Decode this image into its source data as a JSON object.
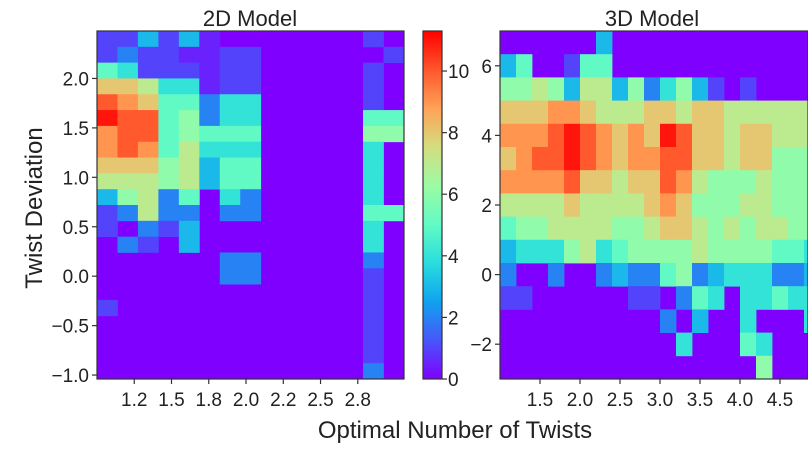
{
  "colors": {
    "colormap": "rainbow",
    "cmap_stops": [
      "#8000ff",
      "#4856fa",
      "#10a2f0",
      "#2adddd",
      "#62fbc4",
      "#9cfba4",
      "#d4dd80",
      "#ffa256",
      "#ff562c",
      "#ff0000"
    ]
  },
  "xlabel": "Optimal Number of Twists",
  "ylabel": "Twist Deviation",
  "chart_data": [
    {
      "type": "heatmap",
      "title": "2D Model",
      "xlim": [
        1.0,
        3.06
      ],
      "ylim": [
        -1.04,
        2.48
      ],
      "xticks": [
        "1.2",
        "1.5",
        "1.8",
        "2.0",
        "2.2",
        "2.5",
        "2.8"
      ],
      "yticks": [
        "−1.0",
        "−0.5",
        "0.0",
        "0.5",
        "1.0",
        "1.5",
        "2.0"
      ],
      "xtick_values": [
        1.25,
        1.5,
        1.75,
        2.0,
        2.25,
        2.5,
        2.75
      ],
      "ytick_values": [
        -1.0,
        -0.5,
        0.0,
        0.5,
        1.0,
        1.5,
        2.0
      ],
      "vmin": 0,
      "vmax": 11.3,
      "x0": 1.0,
      "xbin": 0.1373,
      "y0": -1.04,
      "ybin": 0.16,
      "z": [
        [
          1,
          1,
          3,
          1,
          3,
          0.5,
          0,
          0,
          0,
          0,
          0,
          0,
          0,
          1,
          0,
          0,
          0,
          0,
          0,
          0,
          1,
          1
        ],
        [
          1,
          2,
          1,
          1,
          0.5,
          0.5,
          1,
          1,
          0,
          0,
          0,
          0,
          0,
          0,
          1,
          0,
          0,
          0,
          0,
          0,
          1,
          1
        ],
        [
          5,
          4,
          1,
          1,
          1,
          0.5,
          1,
          1,
          0,
          0,
          0,
          0,
          0,
          1,
          0,
          0,
          0,
          0,
          0,
          0,
          0,
          0
        ],
        [
          8,
          8,
          7,
          4,
          4,
          0.5,
          1,
          1,
          0,
          0,
          0,
          0,
          0,
          1,
          0,
          0,
          0,
          0,
          0,
          0,
          1,
          1
        ],
        [
          10,
          9,
          8,
          5,
          5,
          2,
          4,
          4,
          0,
          0,
          0,
          0,
          0,
          1,
          0,
          0,
          0,
          0,
          0,
          0,
          1,
          1
        ],
        [
          11,
          10,
          10,
          5,
          6,
          2,
          4,
          4,
          0,
          0,
          0,
          0,
          0,
          5,
          5,
          0,
          0,
          0,
          0,
          0,
          5,
          5
        ],
        [
          9,
          10,
          10,
          5,
          6,
          5,
          5,
          5,
          0,
          0,
          0,
          0,
          0,
          6,
          6,
          0,
          0,
          0,
          0,
          0,
          5,
          5
        ],
        [
          9,
          10,
          9,
          5,
          7,
          4,
          4,
          4,
          0,
          0,
          0,
          0,
          0,
          4,
          0,
          0,
          0,
          0,
          0,
          0,
          4,
          4
        ],
        [
          8,
          8,
          8,
          6,
          7,
          3,
          5,
          5,
          0,
          0,
          0,
          0,
          0,
          4,
          0,
          0,
          0,
          0,
          0,
          0,
          4,
          4
        ],
        [
          7,
          7,
          7,
          6,
          7,
          3,
          5,
          5,
          0,
          0,
          0,
          0,
          0,
          4,
          0,
          0,
          0,
          0,
          0,
          0,
          4,
          4
        ],
        [
          3,
          6,
          7,
          2,
          5,
          0,
          4,
          2,
          0,
          0,
          0,
          0,
          0,
          4,
          0,
          0,
          0,
          0,
          0,
          0,
          4,
          4
        ],
        [
          1,
          2,
          7,
          2,
          2,
          0,
          2,
          2,
          0,
          0,
          0,
          0,
          0,
          5,
          5,
          0,
          0,
          0,
          0,
          0,
          4,
          4
        ],
        [
          1,
          0,
          2,
          1,
          3,
          0,
          0,
          0,
          0,
          0,
          0,
          0,
          0,
          4,
          0,
          0,
          0,
          0,
          0,
          0,
          2,
          2
        ],
        [
          0,
          2,
          1,
          0,
          3,
          0,
          0,
          0,
          0,
          0,
          0,
          0,
          0,
          4,
          0,
          0,
          0,
          0,
          0,
          0,
          2,
          2
        ],
        [
          0,
          0,
          0,
          0,
          0,
          0,
          2,
          2,
          0,
          0,
          0,
          0,
          0,
          2,
          0,
          0,
          0,
          0,
          0,
          0,
          0,
          0
        ],
        [
          0,
          0,
          0,
          0,
          0,
          0,
          2,
          2,
          0,
          0,
          0,
          0,
          0,
          1,
          0,
          0,
          0,
          0,
          0,
          0,
          0,
          0
        ],
        [
          0,
          0,
          0,
          0,
          0,
          0,
          0,
          0,
          0,
          0,
          0,
          0,
          0,
          1,
          0,
          0,
          0,
          0,
          0,
          0,
          0,
          0
        ],
        [
          1,
          0,
          0,
          0,
          0,
          0,
          0,
          0,
          0,
          0,
          0,
          0,
          0,
          1,
          0,
          0,
          0,
          0,
          0,
          0,
          0,
          0
        ],
        [
          0,
          0,
          0,
          0,
          0,
          0,
          0,
          0,
          0,
          0,
          0,
          0,
          0,
          1,
          0,
          0,
          0,
          0,
          0,
          0,
          0,
          0
        ],
        [
          0,
          0,
          0,
          0,
          0,
          0,
          0,
          0,
          0,
          0,
          0,
          0,
          0,
          1,
          0,
          0,
          0,
          0,
          0,
          0,
          0,
          0
        ],
        [
          0,
          0,
          0,
          0,
          0,
          0,
          0,
          0,
          0,
          0,
          0,
          0,
          0,
          1,
          0,
          0,
          0,
          0,
          0,
          0,
          0,
          0
        ],
        [
          0,
          0,
          0,
          0,
          0,
          0,
          0,
          0,
          0,
          0,
          0,
          0,
          0,
          2,
          0,
          0,
          0,
          0,
          0,
          0,
          0,
          0
        ]
      ]
    },
    {
      "type": "heatmap",
      "title": "3D Model",
      "xlim": [
        1.0,
        4.85
      ],
      "ylim": [
        -3.0,
        7.0
      ],
      "xticks": [
        "1.5",
        "2.0",
        "2.5",
        "3.0",
        "3.5",
        "4.0",
        "4.5"
      ],
      "yticks": [
        "−2",
        "0",
        "2",
        "4",
        "6"
      ],
      "xtick_values": [
        1.5,
        2.0,
        2.5,
        3.0,
        3.5,
        4.0,
        4.5
      ],
      "ytick_values": [
        -2,
        0,
        2,
        4,
        6
      ],
      "vmin": 0,
      "vmax": 11.3,
      "x0": 1.0,
      "xbin": 0.2,
      "y0": -3.0,
      "ybin": 0.6667,
      "z": [
        [
          0,
          0,
          0,
          0,
          0,
          0,
          3,
          0,
          0,
          0,
          0,
          0,
          0,
          0,
          0,
          0,
          0,
          0,
          0,
          0
        ],
        [
          3,
          5,
          0,
          0,
          1,
          5,
          5,
          0,
          0,
          0,
          0,
          0,
          0,
          0,
          0,
          0,
          0,
          0,
          0,
          0
        ],
        [
          6,
          6,
          7,
          6,
          3,
          7,
          7,
          3,
          6,
          2,
          4,
          6,
          3,
          1,
          0,
          1,
          0,
          0,
          0,
          0
        ],
        [
          8,
          8,
          8,
          9,
          9,
          8,
          7,
          7,
          7,
          8,
          8,
          7,
          8,
          8,
          7,
          7,
          7,
          7,
          7,
          7
        ],
        [
          9,
          9,
          9,
          10,
          11,
          10,
          9,
          8,
          9,
          8,
          11,
          10,
          8,
          8,
          7,
          8,
          8,
          7,
          7,
          7
        ],
        [
          8,
          9,
          10,
          10,
          11,
          10,
          9,
          8,
          9,
          9,
          10,
          10,
          8,
          8,
          7,
          8,
          8,
          6,
          6,
          6
        ],
        [
          9,
          9,
          9,
          9,
          10,
          8,
          8,
          7,
          8,
          8,
          10,
          9,
          7,
          6,
          6,
          6,
          7,
          6,
          6,
          6
        ],
        [
          7,
          7,
          7,
          7,
          8,
          7,
          7,
          7,
          7,
          8,
          9,
          8,
          6,
          6,
          6,
          7,
          7,
          6,
          6,
          6
        ],
        [
          5,
          6,
          6,
          7,
          7,
          7,
          7,
          6,
          6,
          7,
          8,
          8,
          7,
          6,
          7,
          6,
          7,
          7,
          6,
          6
        ],
        [
          3,
          4,
          4,
          4,
          6,
          7,
          4,
          5,
          6,
          6,
          6,
          6,
          7,
          6,
          6,
          6,
          6,
          5,
          5,
          4
        ],
        [
          2,
          0,
          0,
          2,
          0,
          0,
          2,
          3,
          2,
          2,
          5,
          6,
          2,
          3,
          4,
          4,
          4,
          2,
          2,
          3
        ],
        [
          1,
          1,
          0,
          0,
          0,
          0,
          0,
          0,
          1,
          1,
          0,
          2,
          5,
          4,
          0,
          4,
          4,
          5,
          4,
          4
        ],
        [
          0,
          0,
          0,
          0,
          0,
          0,
          0,
          0,
          0,
          0,
          2,
          0,
          3,
          0,
          0,
          4,
          0,
          0,
          0,
          4
        ],
        [
          0,
          0,
          0,
          0,
          0,
          0,
          0,
          0,
          0,
          0,
          0,
          4,
          0,
          0,
          0,
          5,
          4,
          0,
          0,
          0
        ],
        [
          0,
          0,
          0,
          0,
          0,
          0,
          0,
          0,
          0,
          0,
          0,
          0,
          0,
          0,
          0,
          0,
          6,
          0,
          0,
          0
        ]
      ]
    }
  ],
  "colorbar": {
    "vmin": 0,
    "vmax": 11.3,
    "ticks": [
      "0",
      "2",
      "4",
      "6",
      "8",
      "10"
    ],
    "tick_values": [
      0,
      2,
      4,
      6,
      8,
      10
    ]
  }
}
